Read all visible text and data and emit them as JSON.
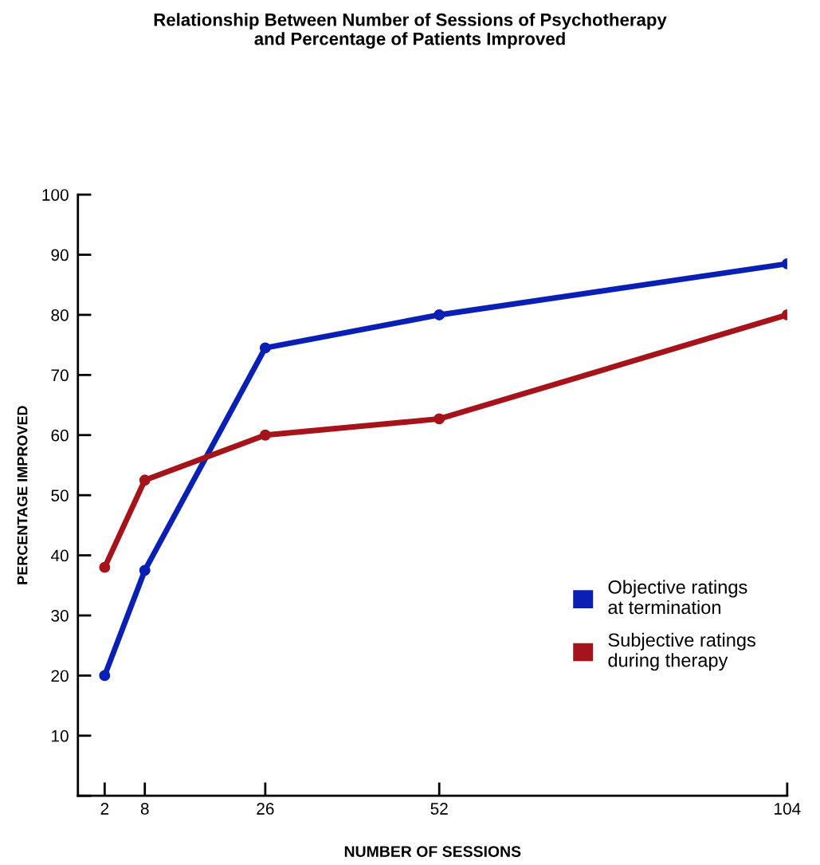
{
  "chart_data": {
    "type": "line",
    "title": "Relationship Between Number of Sessions of Psychotherapy\nand Percentage of Patients Improved",
    "xlabel": "NUMBER OF SESSIONS",
    "ylabel": "PERCENTAGE IMPROVED",
    "x": [
      2,
      8,
      26,
      52,
      104
    ],
    "series": [
      {
        "name": "Objective ratings\nat termination",
        "color": "#0a1fb4",
        "values": [
          20,
          37.5,
          74.5,
          80,
          88.5
        ]
      },
      {
        "name": "Subjective ratings\nduring therapy",
        "color": "#a5141a",
        "values": [
          38,
          52.5,
          60,
          62.7,
          80
        ]
      }
    ],
    "xlim": [
      -2,
      104
    ],
    "xticks": [
      2,
      8,
      26,
      52,
      104
    ],
    "ylim": [
      0,
      100
    ],
    "yticks": [
      {
        "value": 0,
        "label": null
      },
      10,
      20,
      30,
      40,
      50,
      60,
      70,
      80,
      90,
      100
    ],
    "grid": false,
    "legend": "bottom right",
    "marker": "circle",
    "line_style": "solid"
  }
}
